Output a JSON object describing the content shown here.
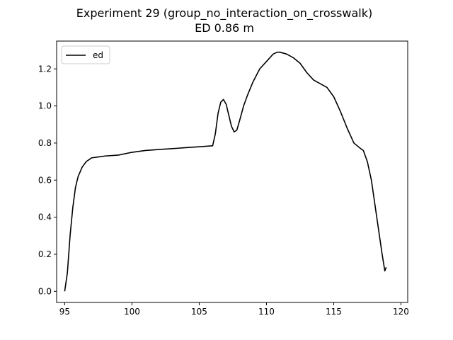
{
  "chart_data": {
    "type": "line",
    "title": "Experiment 29 (group_no_interaction_on_crosswalk)",
    "subtitle": "ED 0.86 m",
    "xlabel": "",
    "ylabel": "",
    "xlim": [
      94.4,
      120.5
    ],
    "ylim": [
      -0.06,
      1.35
    ],
    "xticks": [
      95,
      100,
      105,
      110,
      115,
      120
    ],
    "yticks": [
      0.0,
      0.2,
      0.4,
      0.6,
      0.8,
      1.0,
      1.2
    ],
    "xtick_labels": [
      "95",
      "100",
      "105",
      "110",
      "115",
      "120"
    ],
    "ytick_labels": [
      "0.0",
      "0.2",
      "0.4",
      "0.6",
      "0.8",
      "1.0",
      "1.2"
    ],
    "grid": false,
    "legend_position": "top-left",
    "series": [
      {
        "name": "ed",
        "color": "#000000",
        "x": [
          95.0,
          95.2,
          95.4,
          95.6,
          95.8,
          96.0,
          96.3,
          96.6,
          97.0,
          97.5,
          98.0,
          99.0,
          100.0,
          101.0,
          102.0,
          103.0,
          104.0,
          105.0,
          106.0,
          106.2,
          106.4,
          106.6,
          106.8,
          107.0,
          107.2,
          107.4,
          107.6,
          107.8,
          108.0,
          108.3,
          108.6,
          109.0,
          109.5,
          110.0,
          110.5,
          110.8,
          111.0,
          111.5,
          112.0,
          112.5,
          113.0,
          113.5,
          114.0,
          114.5,
          115.0,
          115.5,
          116.0,
          116.5,
          117.0,
          117.2,
          117.5,
          117.8,
          118.0,
          118.3,
          118.6,
          118.8,
          118.9
        ],
        "y": [
          0.0,
          0.1,
          0.3,
          0.45,
          0.56,
          0.62,
          0.67,
          0.7,
          0.72,
          0.725,
          0.73,
          0.735,
          0.75,
          0.76,
          0.765,
          0.77,
          0.775,
          0.78,
          0.785,
          0.85,
          0.96,
          1.02,
          1.035,
          1.01,
          0.95,
          0.89,
          0.86,
          0.87,
          0.92,
          1.0,
          1.06,
          1.13,
          1.2,
          1.24,
          1.28,
          1.29,
          1.29,
          1.28,
          1.26,
          1.23,
          1.18,
          1.14,
          1.12,
          1.1,
          1.05,
          0.97,
          0.88,
          0.8,
          0.77,
          0.76,
          0.7,
          0.6,
          0.5,
          0.35,
          0.2,
          0.11,
          0.13
        ]
      }
    ]
  }
}
